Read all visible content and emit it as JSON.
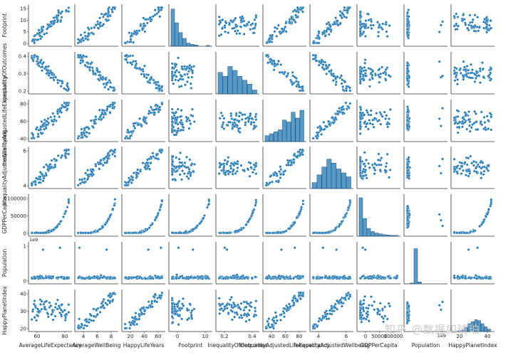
{
  "chart_data": {
    "type": "scatter",
    "variables": [
      "AverageLifeExpectancy",
      "AverageWellBeing",
      "HappyLifeYears",
      "Footprint",
      "InequalityOfOutcomes",
      "InequalityAdjustedLifeExpectancy",
      "InequalityAdjustedWellbeing",
      "GDPPerCapita",
      "Population",
      "HappyPlanetIndex"
    ],
    "ylabels": [
      "Footprint",
      "InequalityOfOutcomes",
      "InequalityAdjustedLifeExpectancy",
      "InequalityAdjustedWellbeing",
      "GDPPerCapita",
      "Population",
      "HappyPlanetIndex"
    ],
    "xlabels": [
      "AverageLifeExpectancy",
      "AverageWellBeing",
      "HappyLifeYears",
      "Footprint",
      "InequalityOfOutcomes",
      "InequalityAdjustedLifeExpectancy",
      "InequalityAdjustedWellbeing",
      "GDPPerCapita",
      "Population",
      "HappyPlanetIndex"
    ],
    "yticks": [
      [
        "0",
        "5",
        "10",
        "15"
      ],
      [
        "0.2",
        "0.3",
        "0.4"
      ],
      [
        "40",
        "60",
        "80"
      ],
      [
        "4",
        "6"
      ],
      [
        "0",
        "50000",
        "100000"
      ],
      [
        "0",
        "1"
      ],
      [
        "20",
        "30",
        "40"
      ]
    ],
    "xticks": [
      [
        "60",
        "80"
      ],
      [
        "4",
        "6",
        "8"
      ],
      [
        "20",
        "40",
        "60"
      ],
      [
        "0",
        "10"
      ],
      [
        "0.2",
        "0.4"
      ],
      [
        "40",
        "60",
        "80"
      ],
      [
        "4",
        "6"
      ],
      [
        "0",
        "50000",
        "100000"
      ],
      [],
      [
        "20",
        "40"
      ]
    ],
    "offset_texts": [
      {
        "row": 5,
        "text": "1e9"
      },
      {
        "col": 8,
        "text": "1e9"
      }
    ],
    "color": "#1f77b4"
  },
  "watermark": "知乎 @数据如琥珀"
}
